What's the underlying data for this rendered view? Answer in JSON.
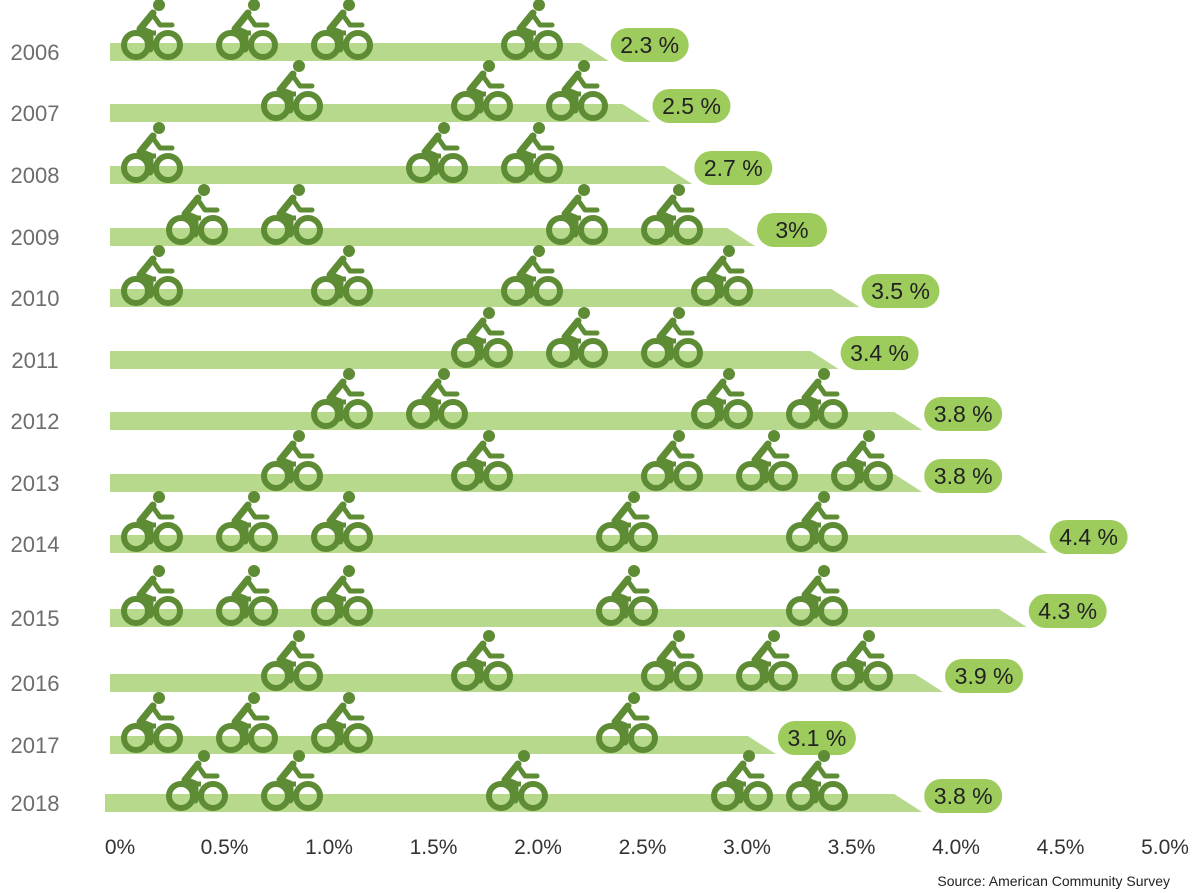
{
  "chart_data": {
    "type": "bar",
    "orientation": "horizontal",
    "categories": [
      "2006",
      "2007",
      "2008",
      "2009",
      "2010",
      "2011",
      "2012",
      "2013",
      "2014",
      "2015",
      "2016",
      "2017",
      "2018"
    ],
    "values": [
      2.3,
      2.5,
      2.7,
      3.0,
      3.5,
      3.4,
      3.8,
      3.8,
      4.4,
      4.3,
      3.9,
      3.1,
      3.8
    ],
    "data_labels": [
      "2.3 %",
      "2.5 %",
      "2.7 %",
      "3%",
      "3.5 %",
      "3.4 %",
      "3.8 %",
      "3.8 %",
      "4.4 %",
      "4.3 %",
      "3.9 %",
      "3.1 %",
      "3.8 %"
    ],
    "xlim": [
      0,
      5
    ],
    "x_ticks": [
      "0%",
      "0.5%",
      "1.0%",
      "1.5%",
      "2.0%",
      "2.5%",
      "3.0%",
      "3.5%",
      "4.0%",
      "4.5%",
      "5.0%"
    ],
    "grid": false,
    "icon": "bicycle-rider-icon",
    "colors": {
      "bar": "#b6d98c",
      "icon": "#5e8c34",
      "label_bubble": "#9dcc5c"
    }
  },
  "source": "Source:  American Community Survey"
}
